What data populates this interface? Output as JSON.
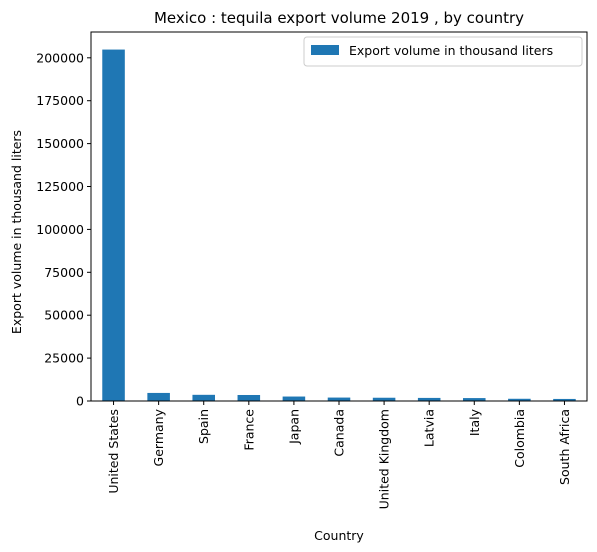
{
  "chart_data": {
    "type": "bar",
    "title": "Mexico : tequila export volume 2019 , by country",
    "xlabel": "Country",
    "ylabel": "Export volume in thousand liters",
    "categories": [
      "United States",
      "Germany",
      "Spain",
      "France",
      "Japan",
      "Canada",
      "United Kingdom",
      "Latvia",
      "Italy",
      "Colombia",
      "South Africa"
    ],
    "series": [
      {
        "name": "Export volume in thousand liters",
        "values": [
          204800,
          4700,
          3600,
          3500,
          2600,
          2000,
          1900,
          1800,
          1700,
          1300,
          1200
        ]
      }
    ],
    "ylim": [
      0,
      215040
    ],
    "yticks": [
      0,
      25000,
      50000,
      75000,
      100000,
      125000,
      150000,
      175000,
      200000
    ],
    "grid": false,
    "legend_position": "top-right",
    "colors": {
      "bar": "#1f77b4",
      "axis": "#000000",
      "legend_border": "#cccccc"
    }
  }
}
